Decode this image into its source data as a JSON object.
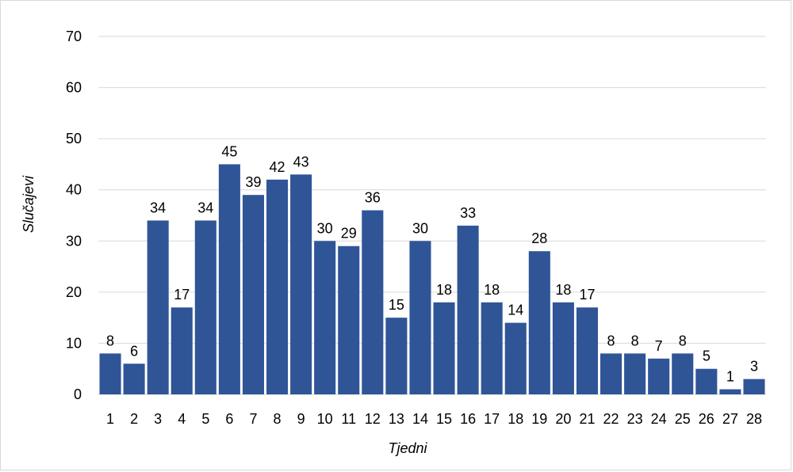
{
  "chart_data": {
    "type": "bar",
    "title": "",
    "xlabel": "Tjedni",
    "ylabel": "Slučajevi",
    "ylim": [
      0,
      70
    ],
    "yticks": [
      0,
      10,
      20,
      30,
      40,
      50,
      60,
      70
    ],
    "grid": true,
    "legend": "none",
    "bar_color": "#2f5597",
    "categories": [
      "1",
      "2",
      "3",
      "4",
      "5",
      "6",
      "7",
      "8",
      "9",
      "10",
      "11",
      "12",
      "13",
      "14",
      "15",
      "16",
      "17",
      "18",
      "19",
      "20",
      "21",
      "22",
      "23",
      "24",
      "25",
      "26",
      "27",
      "28"
    ],
    "values": [
      8,
      6,
      34,
      17,
      34,
      45,
      39,
      42,
      43,
      30,
      29,
      36,
      15,
      30,
      18,
      33,
      18,
      14,
      28,
      18,
      17,
      8,
      8,
      7,
      8,
      5,
      1,
      3
    ],
    "data_labels": true
  }
}
